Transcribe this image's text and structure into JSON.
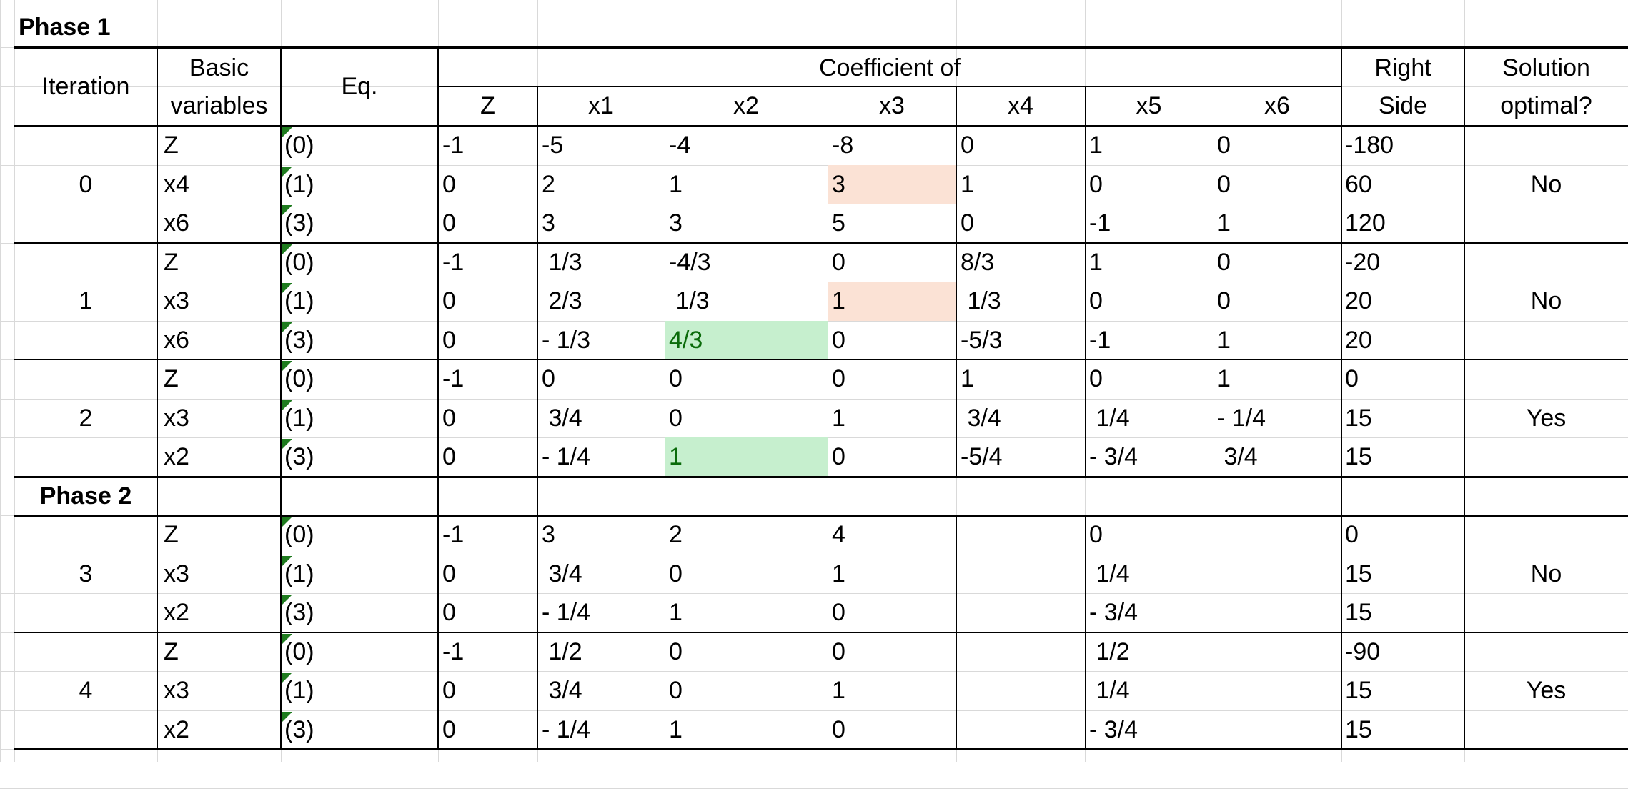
{
  "phase1_label": "Phase 1",
  "phase2_label": "Phase 2",
  "header": {
    "iteration": "Iteration",
    "basic_1": "Basic",
    "basic_2": "variables",
    "eq": "Eq.",
    "coef": "Coefficient of",
    "cols": [
      "Z",
      "x1",
      "x2",
      "x3",
      "x4",
      "x5",
      "x6"
    ],
    "rhs_1": "Right",
    "rhs_2": "Side",
    "opt_1": "Solution",
    "opt_2": "optimal?"
  },
  "iterations": [
    {
      "iteration": "0",
      "optimal": "No",
      "rows": [
        {
          "basic": "Z",
          "eq": "(0)",
          "values": [
            "-1",
            "-5",
            "-4",
            "-8",
            "0",
            "1",
            "0"
          ],
          "rhs": "-180"
        },
        {
          "basic": "x4",
          "eq": "(1)",
          "values": [
            "0",
            "2",
            "1",
            "3",
            "1",
            "0",
            "0"
          ],
          "rhs": "60"
        },
        {
          "basic": "x6",
          "eq": "(3)",
          "values": [
            "0",
            "3",
            "3",
            "5",
            "0",
            "-1",
            "1"
          ],
          "rhs": "120"
        }
      ]
    },
    {
      "iteration": "1",
      "optimal": "No",
      "rows": [
        {
          "basic": "Z",
          "eq": "(0)",
          "values": [
            "-1",
            " 1/3",
            "-4/3",
            "0",
            "8/3",
            "1",
            "0"
          ],
          "rhs": "-20"
        },
        {
          "basic": "x3",
          "eq": "(1)",
          "values": [
            "0",
            " 2/3",
            " 1/3",
            "1",
            " 1/3",
            "0",
            "0"
          ],
          "rhs": "20"
        },
        {
          "basic": "x6",
          "eq": "(3)",
          "values": [
            "0",
            "- 1/3",
            "4/3",
            "0",
            "-5/3",
            "-1",
            "1"
          ],
          "rhs": "20"
        }
      ]
    },
    {
      "iteration": "2",
      "optimal": "Yes",
      "rows": [
        {
          "basic": "Z",
          "eq": "(0)",
          "values": [
            "-1",
            "0",
            "0",
            "0",
            "1",
            "0",
            "1"
          ],
          "rhs": "0"
        },
        {
          "basic": "x3",
          "eq": "(1)",
          "values": [
            "0",
            " 3/4",
            "0",
            "1",
            " 3/4",
            " 1/4",
            "- 1/4"
          ],
          "rhs": "15"
        },
        {
          "basic": "x2",
          "eq": "(3)",
          "values": [
            "0",
            "- 1/4",
            "1",
            "0",
            "-5/4",
            "- 3/4",
            " 3/4"
          ],
          "rhs": "15"
        }
      ]
    },
    {
      "iteration": "3",
      "optimal": "No",
      "rows": [
        {
          "basic": "Z",
          "eq": "(0)",
          "values": [
            "-1",
            "3",
            "2",
            "4",
            "",
            "0",
            ""
          ],
          "rhs": "0"
        },
        {
          "basic": "x3",
          "eq": "(1)",
          "values": [
            "0",
            " 3/4",
            "0",
            "1",
            "",
            " 1/4",
            ""
          ],
          "rhs": "15"
        },
        {
          "basic": "x2",
          "eq": "(3)",
          "values": [
            "0",
            "- 1/4",
            "1",
            "0",
            "",
            "- 3/4",
            ""
          ],
          "rhs": "15"
        }
      ]
    },
    {
      "iteration": "4",
      "optimal": "Yes",
      "rows": [
        {
          "basic": "Z",
          "eq": "(0)",
          "values": [
            "-1",
            " 1/2",
            "0",
            "0",
            "",
            " 1/2",
            ""
          ],
          "rhs": "-90"
        },
        {
          "basic": "x3",
          "eq": "(1)",
          "values": [
            "0",
            " 3/4",
            "0",
            "1",
            "",
            " 1/4",
            ""
          ],
          "rhs": "15"
        },
        {
          "basic": "x2",
          "eq": "(3)",
          "values": [
            "0",
            "- 1/4",
            "1",
            "0",
            "",
            "- 3/4",
            ""
          ],
          "rhs": "15"
        }
      ]
    }
  ],
  "highlights": [
    {
      "iter": 0,
      "row": 1,
      "col": 3,
      "color": "#fbe2d5"
    },
    {
      "iter": 1,
      "row": 1,
      "col": 3,
      "color": "#fbe2d5"
    },
    {
      "iter": 1,
      "row": 2,
      "col": 2,
      "color": "#c6efce"
    },
    {
      "iter": 2,
      "row": 2,
      "col": 2,
      "color": "#c6efce"
    }
  ],
  "colors": {
    "gridline": "#d9d9d9",
    "border": "#000000",
    "peach": "#fbe2d5",
    "green": "#c6efce",
    "green_text": "#0a6b0a",
    "marker": "#1e7b1e"
  }
}
